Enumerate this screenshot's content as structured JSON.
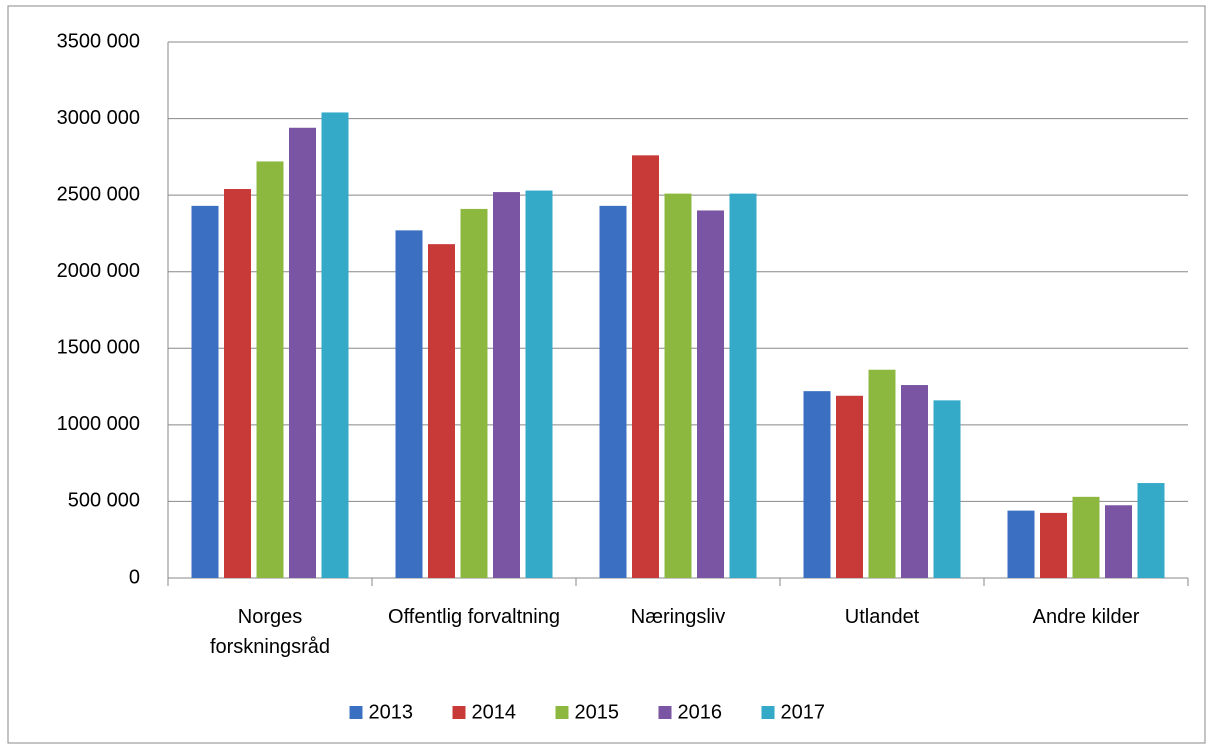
{
  "chart_data": {
    "type": "bar",
    "categories": [
      "Norges forskningsråd",
      "Offentlig forvaltning",
      "Næringsliv",
      "Utlandet",
      "Andre kilder"
    ],
    "series": [
      {
        "name": "2013",
        "color": "#3a6fc1",
        "values": [
          2430000,
          2270000,
          2430000,
          1220000,
          440000
        ]
      },
      {
        "name": "2014",
        "color": "#c83a38",
        "values": [
          2540000,
          2180000,
          2760000,
          1190000,
          425000
        ]
      },
      {
        "name": "2015",
        "color": "#8db840",
        "values": [
          2720000,
          2410000,
          2510000,
          1360000,
          530000
        ]
      },
      {
        "name": "2016",
        "color": "#7a55a3",
        "values": [
          2940000,
          2520000,
          2400000,
          1260000,
          475000
        ]
      },
      {
        "name": "2017",
        "color": "#35aac8",
        "values": [
          3040000,
          2530000,
          2510000,
          1160000,
          620000
        ]
      }
    ],
    "ylim": [
      0,
      3500000
    ],
    "yticks": [
      0,
      {
        "value": 500000,
        "label": "500 000"
      },
      {
        "value": 1000000,
        "label": "1000 000"
      },
      {
        "value": 1500000,
        "label": "1500 000"
      },
      {
        "value": 2000000,
        "label": "2000 000"
      },
      {
        "value": 2500000,
        "label": "2500 000"
      },
      {
        "value": 3000000,
        "label": "3000 000"
      },
      {
        "value": 3500000,
        "label": "3500 000"
      }
    ],
    "grid": true,
    "legend": "bottom"
  }
}
